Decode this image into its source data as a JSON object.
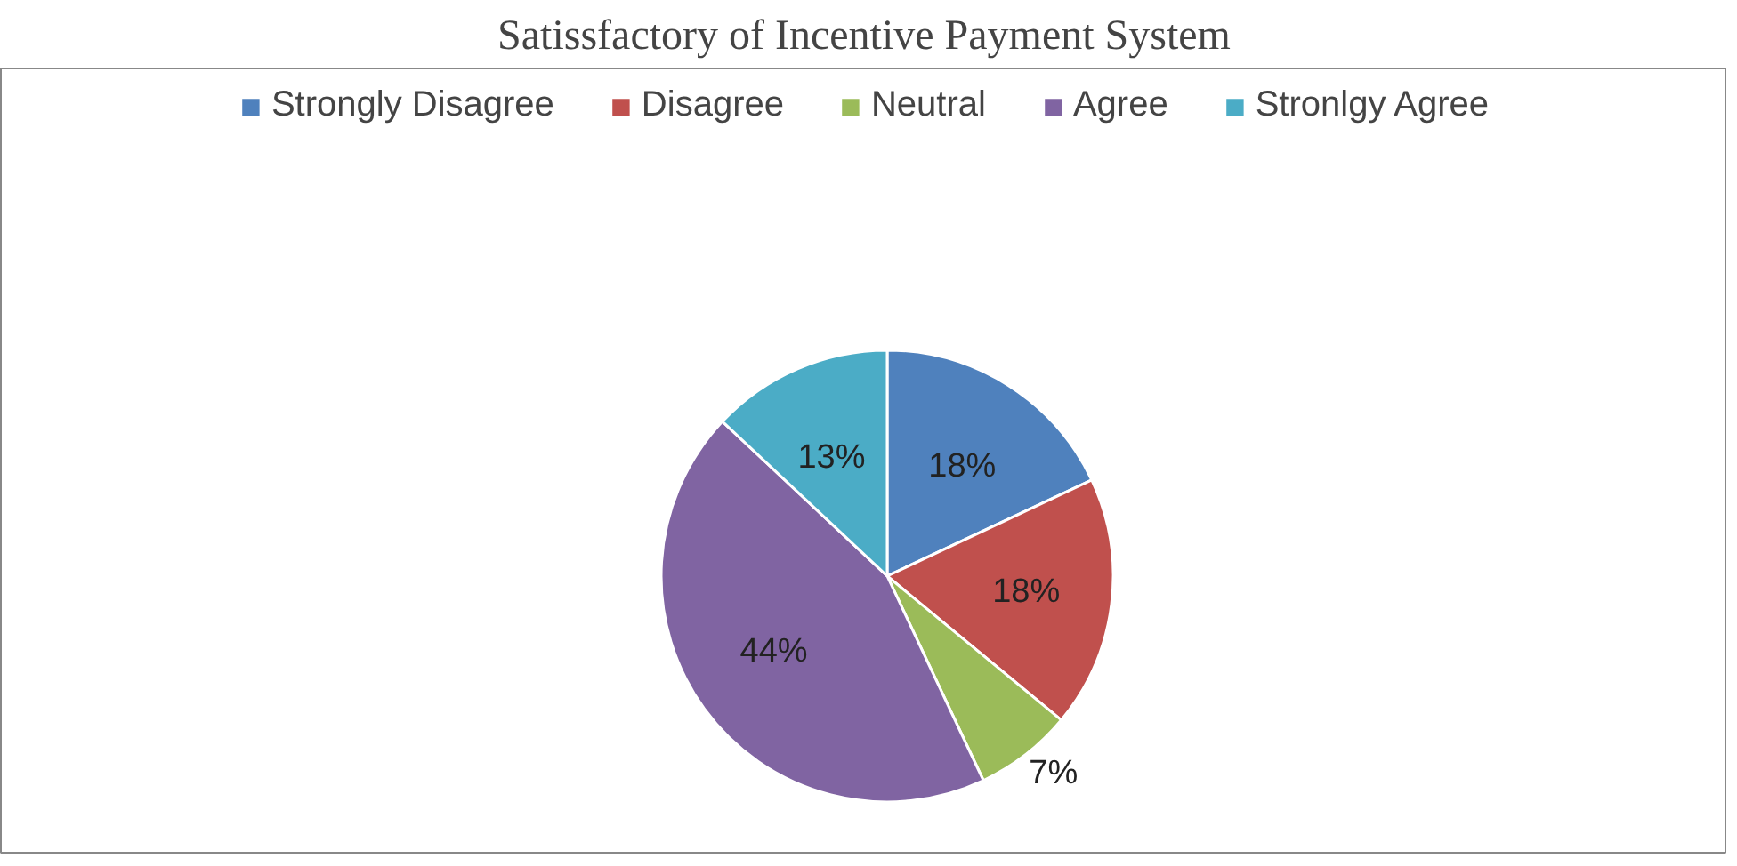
{
  "chart_data": {
    "type": "pie",
    "title": "Satissfactory of Incentive Payment System",
    "categories": [
      "Strongly Disagree",
      "Disagree",
      "Neutral",
      "Agree",
      "Stronlgy Agree"
    ],
    "values": [
      18,
      18,
      7,
      44,
      13
    ],
    "colors": [
      "#4f81bd",
      "#c0504d",
      "#9bbb59",
      "#8064a2",
      "#4bacc6"
    ],
    "value_labels": [
      "18%",
      "18%",
      "7%",
      "44%",
      "13%"
    ],
    "legend": "top"
  }
}
